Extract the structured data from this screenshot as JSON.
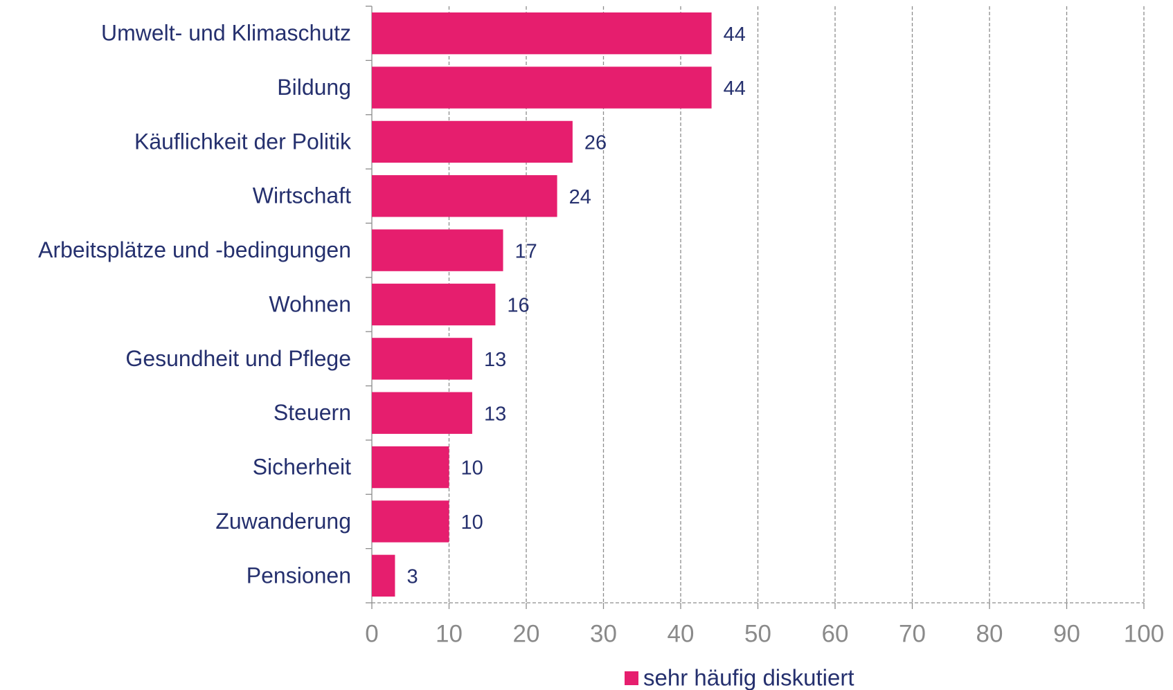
{
  "chart_data": {
    "type": "bar",
    "orientation": "horizontal",
    "categories": [
      "Umwelt- und Klimaschutz",
      "Bildung",
      "Käuflichkeit der Politik",
      "Wirtschaft",
      "Arbeitsplätze und -bedingungen",
      "Wohnen",
      "Gesundheit und Pflege",
      "Steuern",
      "Sicherheit",
      "Zuwanderung",
      "Pensionen"
    ],
    "series": [
      {
        "name": "sehr häufig diskutiert",
        "color": "#e61e6e",
        "values": [
          44,
          44,
          26,
          24,
          17,
          16,
          13,
          13,
          10,
          10,
          3
        ]
      }
    ],
    "xlim": [
      0,
      100
    ],
    "xticks": [
      0,
      10,
      20,
      30,
      40,
      50,
      60,
      70,
      80,
      90,
      100
    ],
    "grid": true,
    "legend": "bottom"
  }
}
